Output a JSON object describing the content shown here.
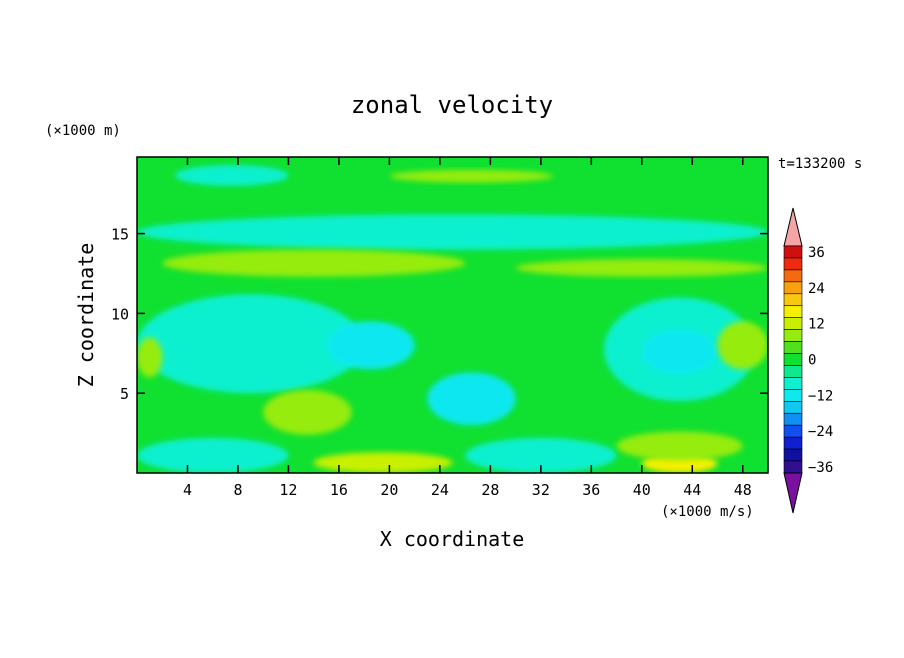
{
  "chart_data": {
    "type": "heatmap",
    "title": "zonal velocity",
    "xlabel": "X coordinate",
    "ylabel": "Z coordinate",
    "x_unit": "(×1000 m/s)",
    "y_unit": "(×1000 m)",
    "time_label": "t=133200 s",
    "xlim": [
      0,
      50
    ],
    "ylim": [
      0,
      19.8
    ],
    "x_ticks": [
      4,
      8,
      12,
      16,
      20,
      24,
      28,
      32,
      36,
      40,
      44,
      48
    ],
    "y_ticks": [
      5,
      10,
      15
    ],
    "colorbar": {
      "tick_values": [
        36,
        24,
        12,
        0,
        -12,
        -24,
        -36
      ],
      "levels": [
        {
          "value": 40,
          "color": "#f4a6a6"
        },
        {
          "value": 36,
          "color": "#d01010"
        },
        {
          "value": 32,
          "color": "#ee2a10"
        },
        {
          "value": 28,
          "color": "#f46a10"
        },
        {
          "value": 24,
          "color": "#f8a010"
        },
        {
          "value": 20,
          "color": "#f8c810"
        },
        {
          "value": 16,
          "color": "#f4f000"
        },
        {
          "value": 12,
          "color": "#c8f000"
        },
        {
          "value": 8,
          "color": "#96ec10"
        },
        {
          "value": 4,
          "color": "#50e020"
        },
        {
          "value": 0,
          "color": "#10e030"
        },
        {
          "value": -4,
          "color": "#10e890"
        },
        {
          "value": -8,
          "color": "#10f0d0"
        },
        {
          "value": -12,
          "color": "#10e8f0"
        },
        {
          "value": -16,
          "color": "#10c8f0"
        },
        {
          "value": -20,
          "color": "#1090f0"
        },
        {
          "value": -24,
          "color": "#1050f0"
        },
        {
          "value": -28,
          "color": "#1020d0"
        },
        {
          "value": -32,
          "color": "#1010a0"
        },
        {
          "value": -36,
          "color": "#301090"
        },
        {
          "value": -40,
          "color": "#7a10a0"
        }
      ]
    },
    "field": {
      "background_value": 0,
      "regions": [
        {
          "name": "upper-cyan-band",
          "x": [
            0,
            50
          ],
          "z": [
            14.0,
            16.2
          ],
          "value": -8
        },
        {
          "name": "top-cyan-patch",
          "x": [
            3,
            12
          ],
          "z": [
            18.0,
            19.3
          ],
          "value": -8
        },
        {
          "name": "top-yellowgreen-strip",
          "x": [
            20,
            33
          ],
          "z": [
            18.2,
            19.0
          ],
          "value": 8
        },
        {
          "name": "yellowgreen-band",
          "x": [
            2,
            26
          ],
          "z": [
            12.3,
            14.0
          ],
          "value": 8
        },
        {
          "name": "yellowgreen-right-band",
          "x": [
            30,
            50
          ],
          "z": [
            12.3,
            13.4
          ],
          "value": 8
        },
        {
          "name": "mid-cyan-left",
          "x": [
            0,
            18
          ],
          "z": [
            5.0,
            11.2
          ],
          "value": -8
        },
        {
          "name": "mid-cyan-core-left",
          "x": [
            15,
            22
          ],
          "z": [
            6.5,
            9.5
          ],
          "value": -12
        },
        {
          "name": "mid-cyan-right",
          "x": [
            37,
            49
          ],
          "z": [
            4.5,
            11.0
          ],
          "value": -8
        },
        {
          "name": "mid-cyan-core-right",
          "x": [
            40,
            46
          ],
          "z": [
            6.2,
            9.0
          ],
          "value": -12
        },
        {
          "name": "lower-cyan-blob",
          "x": [
            23,
            30
          ],
          "z": [
            3.0,
            6.3
          ],
          "value": -12
        },
        {
          "name": "right-yellowgreen-blob",
          "x": [
            46,
            50
          ],
          "z": [
            6.5,
            9.5
          ],
          "value": 8
        },
        {
          "name": "left-yellowgreen-blob",
          "x": [
            0,
            2
          ],
          "z": [
            6.0,
            8.5
          ],
          "value": 8
        },
        {
          "name": "lower-left-yellowgreen",
          "x": [
            10,
            17
          ],
          "z": [
            2.4,
            5.2
          ],
          "value": 8
        },
        {
          "name": "lower-yellow-left",
          "x": [
            14,
            25
          ],
          "z": [
            0,
            1.3
          ],
          "value": 12
        },
        {
          "name": "lower-yellow-right",
          "x": [
            40,
            46
          ],
          "z": [
            0,
            1.2
          ],
          "value": 16
        },
        {
          "name": "lower-yellowgreen-right",
          "x": [
            38,
            48
          ],
          "z": [
            0.8,
            2.6
          ],
          "value": 8
        },
        {
          "name": "bottom-cyan-left",
          "x": [
            0,
            12
          ],
          "z": [
            0,
            2.2
          ],
          "value": -8
        },
        {
          "name": "bottom-cyan-mid",
          "x": [
            26,
            38
          ],
          "z": [
            0,
            2.2
          ],
          "value": -8
        }
      ]
    }
  }
}
